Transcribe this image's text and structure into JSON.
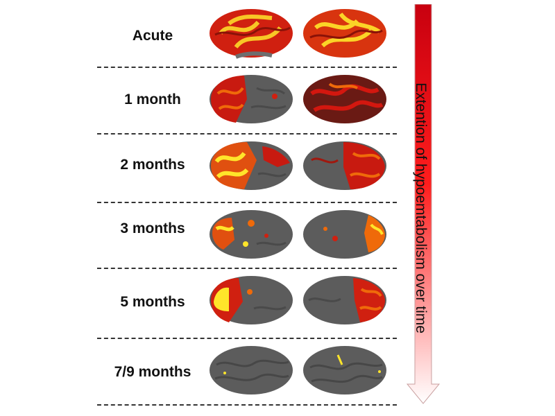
{
  "rows": [
    {
      "label": "Acute",
      "lateral": "severe",
      "medial": "severe"
    },
    {
      "label": "1 month",
      "lateral": "strong",
      "medial": "strong"
    },
    {
      "label": "2 months",
      "lateral": "strong-bright",
      "medial": "moderate"
    },
    {
      "label": "3 months",
      "lateral": "moderate",
      "medial": "mild"
    },
    {
      "label": "5 months",
      "lateral": "frontal",
      "medial": "frontal"
    },
    {
      "label": "7/9 months",
      "lateral": "minimal",
      "medial": "minimal"
    }
  ],
  "arrow": {
    "label": "Extention of hypoemtabolism over time",
    "color_top": "#c8000f",
    "color_mid": "#ff1d1d",
    "color_bottom": "#ffffff"
  },
  "colors": {
    "cortex_gray": "#5c5c5c",
    "activation_red": "#d3170f",
    "activation_orange": "#ef6a0a",
    "activation_yellow": "#ffe52a"
  }
}
